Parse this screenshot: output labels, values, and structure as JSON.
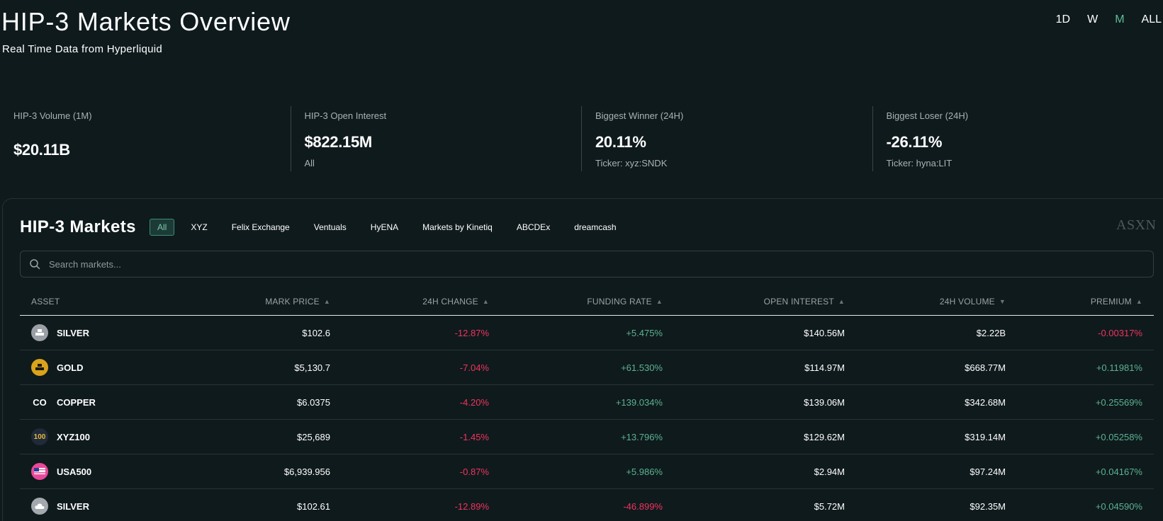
{
  "header": {
    "title": "HIP-3 Markets Overview",
    "subtitle": "Real Time Data from Hyperliquid",
    "ranges": [
      "1D",
      "W",
      "M",
      "ALL"
    ],
    "active_range": "M"
  },
  "stats": [
    {
      "label": "HIP-3 Volume (1M)",
      "value": "$20.11B",
      "sub": ""
    },
    {
      "label": "HIP-3 Open Interest",
      "value": "$822.15M",
      "sub": "All"
    },
    {
      "label": "Biggest Winner (24H)",
      "value": "20.11%",
      "sub": "Ticker: xyz:SNDK"
    },
    {
      "label": "Biggest Loser (24H)",
      "value": "-26.11%",
      "sub": "Ticker: hyna:LIT"
    }
  ],
  "markets": {
    "title": "HIP-3 Markets",
    "brand": "ASXN",
    "filters": [
      "All",
      "XYZ",
      "Felix Exchange",
      "Ventuals",
      "HyENA",
      "Markets by Kinetiq",
      "ABCDEx",
      "dreamcash"
    ],
    "active_filter": "All",
    "search": {
      "placeholder": "Search markets..."
    },
    "columns": {
      "asset": "ASSET",
      "mark_price": "MARK PRICE",
      "change_24h": "24H CHANGE",
      "funding_rate": "FUNDING RATE",
      "open_interest": "OPEN INTEREST",
      "volume_24h": "24H VOLUME",
      "premium": "PREMIUM"
    },
    "rows": [
      {
        "asset": "SILVER",
        "icon": "silver-bars-icon",
        "icon_text": "",
        "icon_color": "#9aa0a6",
        "mark_price": "$102.6",
        "change_24h": "-12.87%",
        "change_dir": "neg",
        "funding_rate": "+5.475%",
        "funding_dir": "pos",
        "open_interest": "$140.56M",
        "volume_24h": "$2.22B",
        "premium": "-0.00317%",
        "premium_dir": "neg"
      },
      {
        "asset": "GOLD",
        "icon": "gold-bars-icon",
        "icon_text": "",
        "icon_color": "#d9a31a",
        "mark_price": "$5,130.7",
        "change_24h": "-7.04%",
        "change_dir": "neg",
        "funding_rate": "+61.530%",
        "funding_dir": "pos",
        "open_interest": "$114.97M",
        "volume_24h": "$668.77M",
        "premium": "+0.11981%",
        "premium_dir": "pos"
      },
      {
        "asset": "COPPER",
        "icon": "copper-icon",
        "icon_text": "CO",
        "icon_color": "#0f1a1d",
        "mark_price": "$6.0375",
        "change_24h": "-4.20%",
        "change_dir": "neg",
        "funding_rate": "+139.034%",
        "funding_dir": "pos",
        "open_interest": "$139.06M",
        "volume_24h": "$342.68M",
        "premium": "+0.25569%",
        "premium_dir": "pos"
      },
      {
        "asset": "XYZ100",
        "icon": "xyz100-icon",
        "icon_text": "100",
        "icon_color": "#1f2a3a",
        "mark_price": "$25,689",
        "change_24h": "-1.45%",
        "change_dir": "neg",
        "funding_rate": "+13.796%",
        "funding_dir": "pos",
        "open_interest": "$129.62M",
        "volume_24h": "$319.14M",
        "premium": "+0.05258%",
        "premium_dir": "pos"
      },
      {
        "asset": "USA500",
        "icon": "usa500-icon",
        "icon_text": "",
        "icon_color": "#e8489a",
        "mark_price": "$6,939.956",
        "change_24h": "-0.87%",
        "change_dir": "neg",
        "funding_rate": "+5.986%",
        "funding_dir": "pos",
        "open_interest": "$2.94M",
        "volume_24h": "$97.24M",
        "premium": "+0.04167%",
        "premium_dir": "pos"
      },
      {
        "asset": "SILVER",
        "icon": "silver-cloud-icon",
        "icon_text": "",
        "icon_color": "#a3a9ae",
        "mark_price": "$102.61",
        "change_24h": "-12.89%",
        "change_dir": "neg",
        "funding_rate": "-46.899%",
        "funding_dir": "neg",
        "open_interest": "$5.72M",
        "volume_24h": "$92.35M",
        "premium": "+0.04590%",
        "premium_dir": "pos"
      }
    ]
  },
  "colors": {
    "background": "#0f1a1d",
    "positive": "#5bb38f",
    "negative": "#f0345c",
    "accent": "#5bbf96"
  }
}
